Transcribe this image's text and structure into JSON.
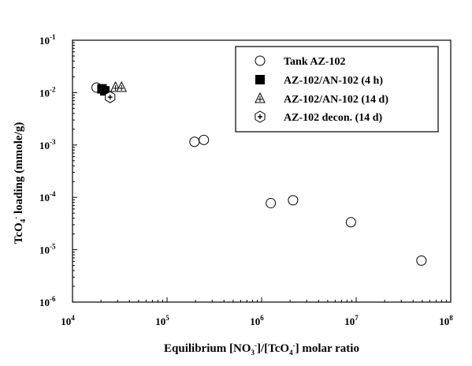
{
  "chart_data": {
    "type": "scatter",
    "x_scale": "log",
    "y_scale": "log",
    "xlim": [
      10000,
      100000000
    ],
    "ylim": [
      1e-06,
      0.1
    ],
    "grid": false,
    "legend_position": "top-right",
    "xlabel": {
      "prefix": "Equilibrium [NO",
      "sub1": "3",
      "sup1": "-",
      "mid": "]/[TcO",
      "sub2": "4",
      "sup2": "-",
      "suffix": "] molar ratio"
    },
    "ylabel": {
      "prefix": "TcO",
      "sub": "4",
      "sup": "-",
      "suffix": " loading (mmole/g)"
    },
    "x_ticks": [
      {
        "value": 10000,
        "base": "10",
        "exp": "4"
      },
      {
        "value": 100000,
        "base": "10",
        "exp": "5"
      },
      {
        "value": 1000000,
        "base": "10",
        "exp": "6"
      },
      {
        "value": 10000000,
        "base": "10",
        "exp": "7"
      },
      {
        "value": 100000000,
        "base": "10",
        "exp": "8"
      }
    ],
    "y_ticks": [
      {
        "value": 0.1,
        "base": "10",
        "exp": "-1"
      },
      {
        "value": 0.01,
        "base": "10",
        "exp": "-2"
      },
      {
        "value": 0.001,
        "base": "10",
        "exp": "-3"
      },
      {
        "value": 0.0001,
        "base": "10",
        "exp": "-4"
      },
      {
        "value": 1e-05,
        "base": "10",
        "exp": "-5"
      },
      {
        "value": 1e-06,
        "base": "10",
        "exp": "-6"
      }
    ],
    "series": [
      {
        "name": "Tank AZ-102",
        "marker": "open-circle",
        "color": "#000000",
        "points": [
          {
            "x": 18000,
            "y": 0.0125
          },
          {
            "x": 195000,
            "y": 0.00115
          },
          {
            "x": 245000,
            "y": 0.00125
          },
          {
            "x": 1250000,
            "y": 7.75e-05
          },
          {
            "x": 2150000,
            "y": 8.8e-05
          },
          {
            "x": 8800000,
            "y": 3.35e-05
          },
          {
            "x": 49000000,
            "y": 6.2e-06
          }
        ]
      },
      {
        "name": "AZ-102/AN-102 (4 h)",
        "marker": "filled-square",
        "color": "#000000",
        "points": [
          {
            "x": 20500,
            "y": 0.0118
          },
          {
            "x": 22000,
            "y": 0.0108
          }
        ]
      },
      {
        "name": "AZ-102/AN-102 (14 d)",
        "marker": "open-triangle",
        "color": "#000000",
        "points": [
          {
            "x": 28500,
            "y": 0.0125
          },
          {
            "x": 33000,
            "y": 0.0125
          }
        ]
      },
      {
        "name": "AZ-102 decon. (14 d)",
        "marker": "open-hexagon-cross",
        "color": "#000000",
        "points": [
          {
            "x": 25000,
            "y": 0.0082
          }
        ]
      }
    ]
  }
}
